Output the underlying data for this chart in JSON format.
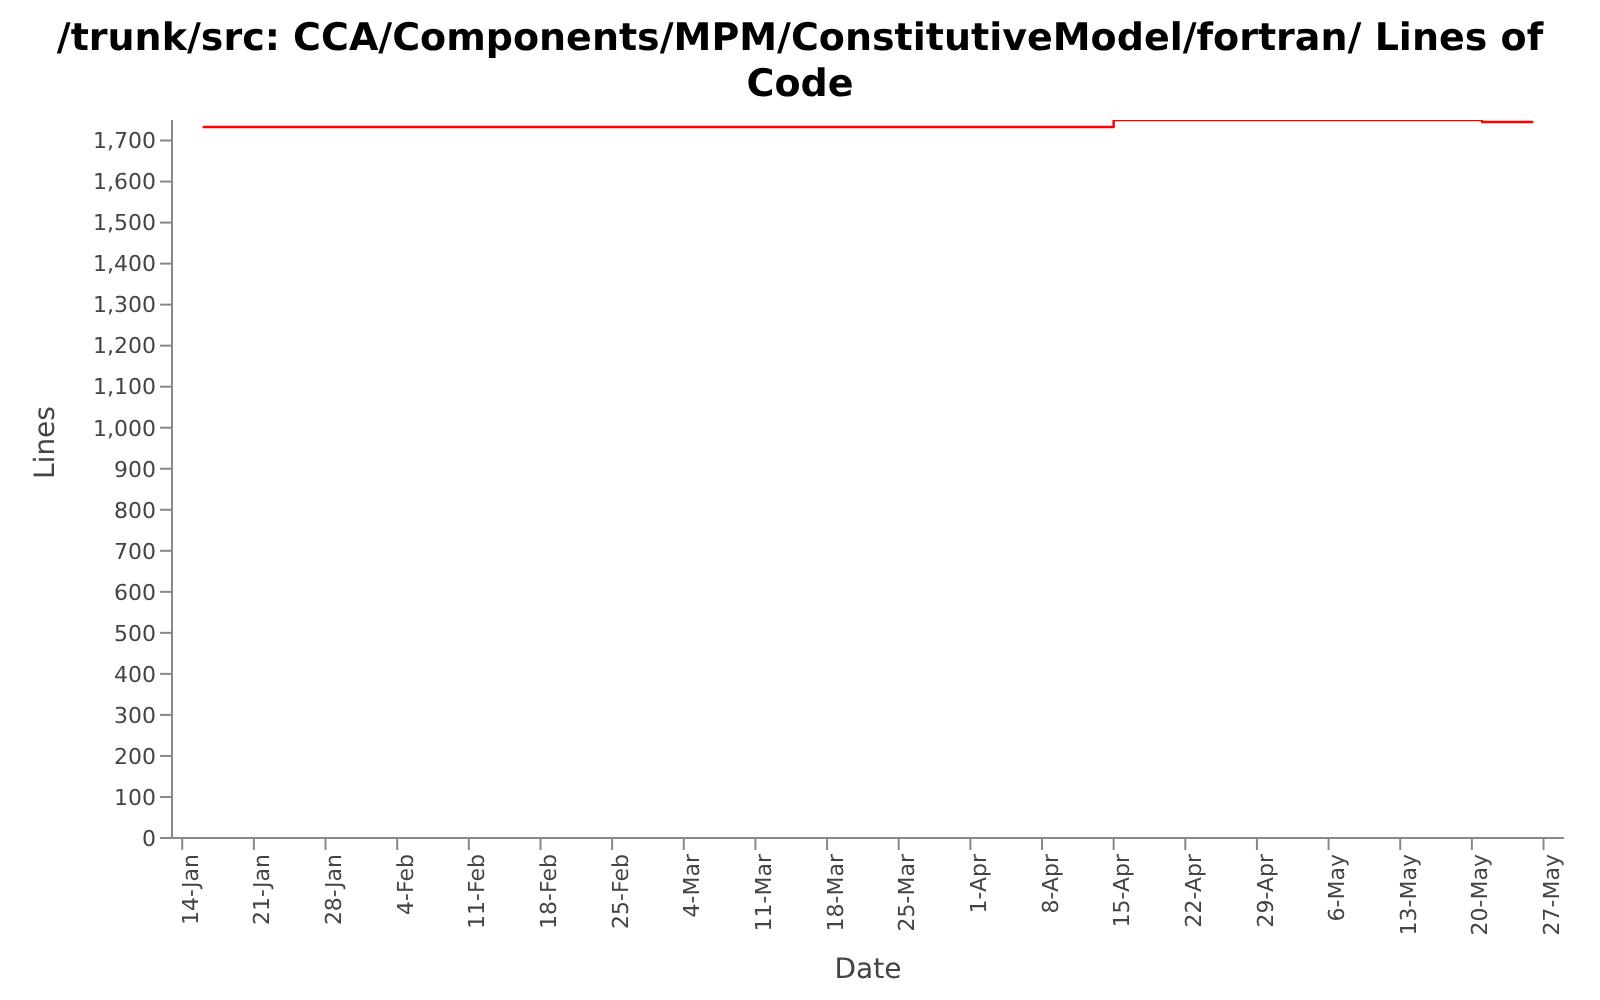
{
  "chart_data": {
    "type": "step",
    "title": "/trunk/src: CCA/Components/MPM/ConstitutiveModel/fortran/ Lines of Code",
    "xlabel": "Date",
    "ylabel": "Lines",
    "x": [
      "--01-16",
      "--04-15",
      "--05-21",
      "--05-26"
    ],
    "series": [
      {
        "color": "#ff0000",
        "values": [
          1733,
          1750,
          1745,
          1745
        ]
      }
    ],
    "xlim": [
      "--01-13",
      "--05-29"
    ],
    "xticks": [
      {
        "value": "--01-14",
        "label": "14-Jan"
      },
      {
        "value": "--01-21",
        "label": "21-Jan"
      },
      {
        "value": "--01-28",
        "label": "28-Jan"
      },
      {
        "value": "--02-04",
        "label": "4-Feb"
      },
      {
        "value": "--02-11",
        "label": "11-Feb"
      },
      {
        "value": "--02-18",
        "label": "18-Feb"
      },
      {
        "value": "--02-25",
        "label": "25-Feb"
      },
      {
        "value": "--03-04",
        "label": "4-Mar"
      },
      {
        "value": "--03-11",
        "label": "11-Mar"
      },
      {
        "value": "--03-18",
        "label": "18-Mar"
      },
      {
        "value": "--03-25",
        "label": "25-Mar"
      },
      {
        "value": "--04-01",
        "label": "1-Apr"
      },
      {
        "value": "--04-08",
        "label": "8-Apr"
      },
      {
        "value": "--04-15",
        "label": "15-Apr"
      },
      {
        "value": "--04-22",
        "label": "22-Apr"
      },
      {
        "value": "--04-29",
        "label": "29-Apr"
      },
      {
        "value": "--05-06",
        "label": "6-May"
      },
      {
        "value": "--05-13",
        "label": "13-May"
      },
      {
        "value": "--05-20",
        "label": "20-May"
      },
      {
        "value": "--05-27",
        "label": "27-May"
      }
    ],
    "ylim": [
      0,
      1750
    ],
    "yticks": [
      0,
      100,
      200,
      300,
      400,
      500,
      600,
      700,
      800,
      900,
      {
        "value": 1000,
        "label": "1,000"
      },
      {
        "value": 1100,
        "label": "1,100"
      },
      {
        "value": 1200,
        "label": "1,200"
      },
      {
        "value": 1300,
        "label": "1,300"
      },
      {
        "value": 1400,
        "label": "1,400"
      },
      {
        "value": 1500,
        "label": "1,500"
      },
      {
        "value": 1600,
        "label": "1,600"
      },
      {
        "value": 1700,
        "label": "1,700"
      }
    ],
    "grid": false,
    "legend": false,
    "marker": "none",
    "line_style": "solid"
  }
}
